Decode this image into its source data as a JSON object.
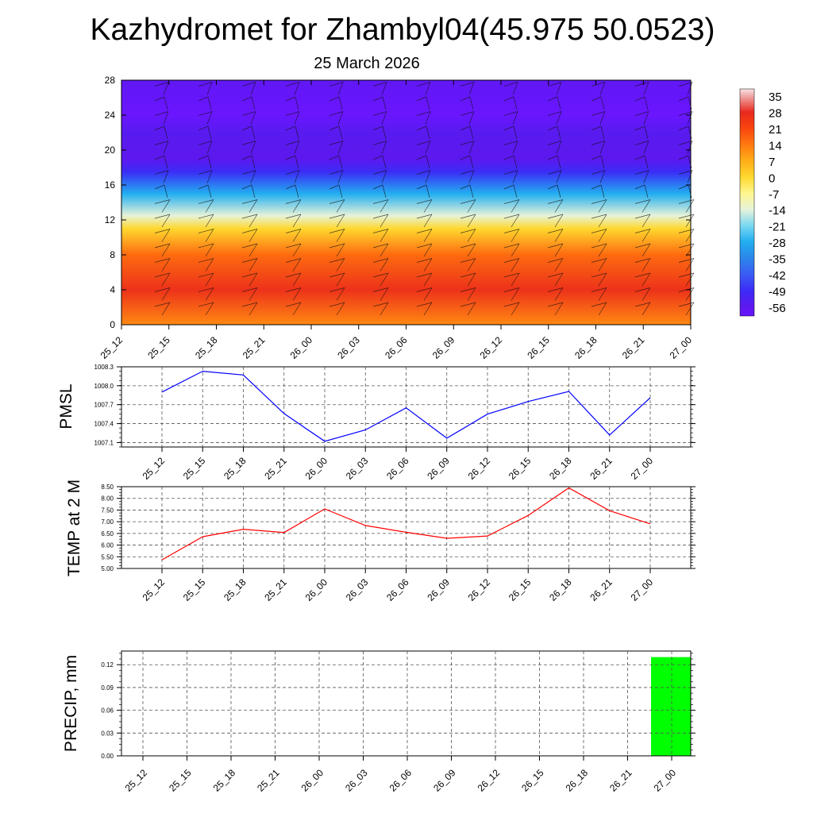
{
  "title": "Kazhydromet for Zhambyl04(45.975 50.0523)",
  "subtitle": "25 March 2026",
  "colors": {
    "pmsl_line": "#0000ff",
    "temp_line": "#ff0000",
    "precip_bar": "#00ff00",
    "grid": "#555555"
  },
  "chart_data": [
    {
      "type": "heatmap",
      "description_key": "temperature-profile",
      "x_tick_labels": [
        "25_12",
        "25_15",
        "25_18",
        "25_21",
        "26_00",
        "26_03",
        "26_06",
        "26_09",
        "26_12",
        "26_15",
        "26_18",
        "26_21",
        "27_00"
      ],
      "y_tick_labels": [
        "0",
        "4",
        "8",
        "12",
        "16",
        "20",
        "24",
        "28"
      ],
      "ylim": [
        0,
        28
      ],
      "colorbar_labels": [
        "35",
        "28",
        "21",
        "14",
        "7",
        "0",
        "-7",
        "-14",
        "-21",
        "-28",
        "-35",
        "-42",
        "-49",
        "-56"
      ],
      "colorbar_range": [
        -60,
        38
      ],
      "temperature_profile": [
        {
          "level": 0,
          "value": 12
        },
        {
          "level": 4,
          "value": 26
        },
        {
          "level": 8,
          "value": 16
        },
        {
          "level": 11,
          "value": 0
        },
        {
          "level": 12.5,
          "value": -14
        },
        {
          "level": 15,
          "value": -28
        },
        {
          "level": 17.5,
          "value": -49
        },
        {
          "level": 19,
          "value": -56
        },
        {
          "level": 22,
          "value": -55
        },
        {
          "level": 24,
          "value": -63
        },
        {
          "level": 28,
          "value": -58
        }
      ]
    },
    {
      "type": "line",
      "ylabel": "PMSL",
      "x": [
        "25_12",
        "25_15",
        "25_18",
        "25_21",
        "26_00",
        "26_03",
        "26_06",
        "26_09",
        "26_12",
        "26_15",
        "26_18",
        "26_21",
        "27_00"
      ],
      "y_tick_labels": [
        "1008.3",
        "1008.0",
        "1007.7",
        "1007.4",
        "1007.1"
      ],
      "ylim": [
        1007.03,
        1008.3
      ],
      "values": [
        1007.9,
        1008.23,
        1008.17,
        1007.56,
        1007.12,
        1007.3,
        1007.65,
        1007.17,
        1007.55,
        1007.75,
        1007.91,
        1007.22,
        1007.81
      ]
    },
    {
      "type": "line",
      "ylabel": "TEMP at 2 M",
      "x": [
        "25_12",
        "25_15",
        "25_18",
        "25_21",
        "26_00",
        "26_03",
        "26_06",
        "26_09",
        "26_12",
        "26_15",
        "26_18",
        "26_21",
        "27_00"
      ],
      "y_tick_labels": [
        "8.50",
        "8.00",
        "7.50",
        "7.00",
        "6.50",
        "6.00",
        "5.50",
        "5.00"
      ],
      "ylim": [
        5.0,
        8.5
      ],
      "values": [
        5.37,
        6.36,
        6.68,
        6.54,
        7.55,
        6.84,
        6.55,
        6.29,
        6.39,
        7.27,
        8.45,
        7.47,
        6.91
      ]
    },
    {
      "type": "bar",
      "ylabel": "PRECIP, mm",
      "categories": [
        "25_12",
        "25_15",
        "25_18",
        "25_21",
        "26_00",
        "26_03",
        "26_06",
        "26_09",
        "26_12",
        "26_15",
        "26_18",
        "26_21",
        "27_00"
      ],
      "y_tick_labels": [
        "0.12",
        "0.09",
        "0.06",
        "0.03",
        "0.00"
      ],
      "ylim": [
        0,
        0.138
      ],
      "values": [
        0,
        0,
        0,
        0,
        0,
        0,
        0,
        0,
        0,
        0,
        0,
        0,
        0.13
      ]
    }
  ]
}
